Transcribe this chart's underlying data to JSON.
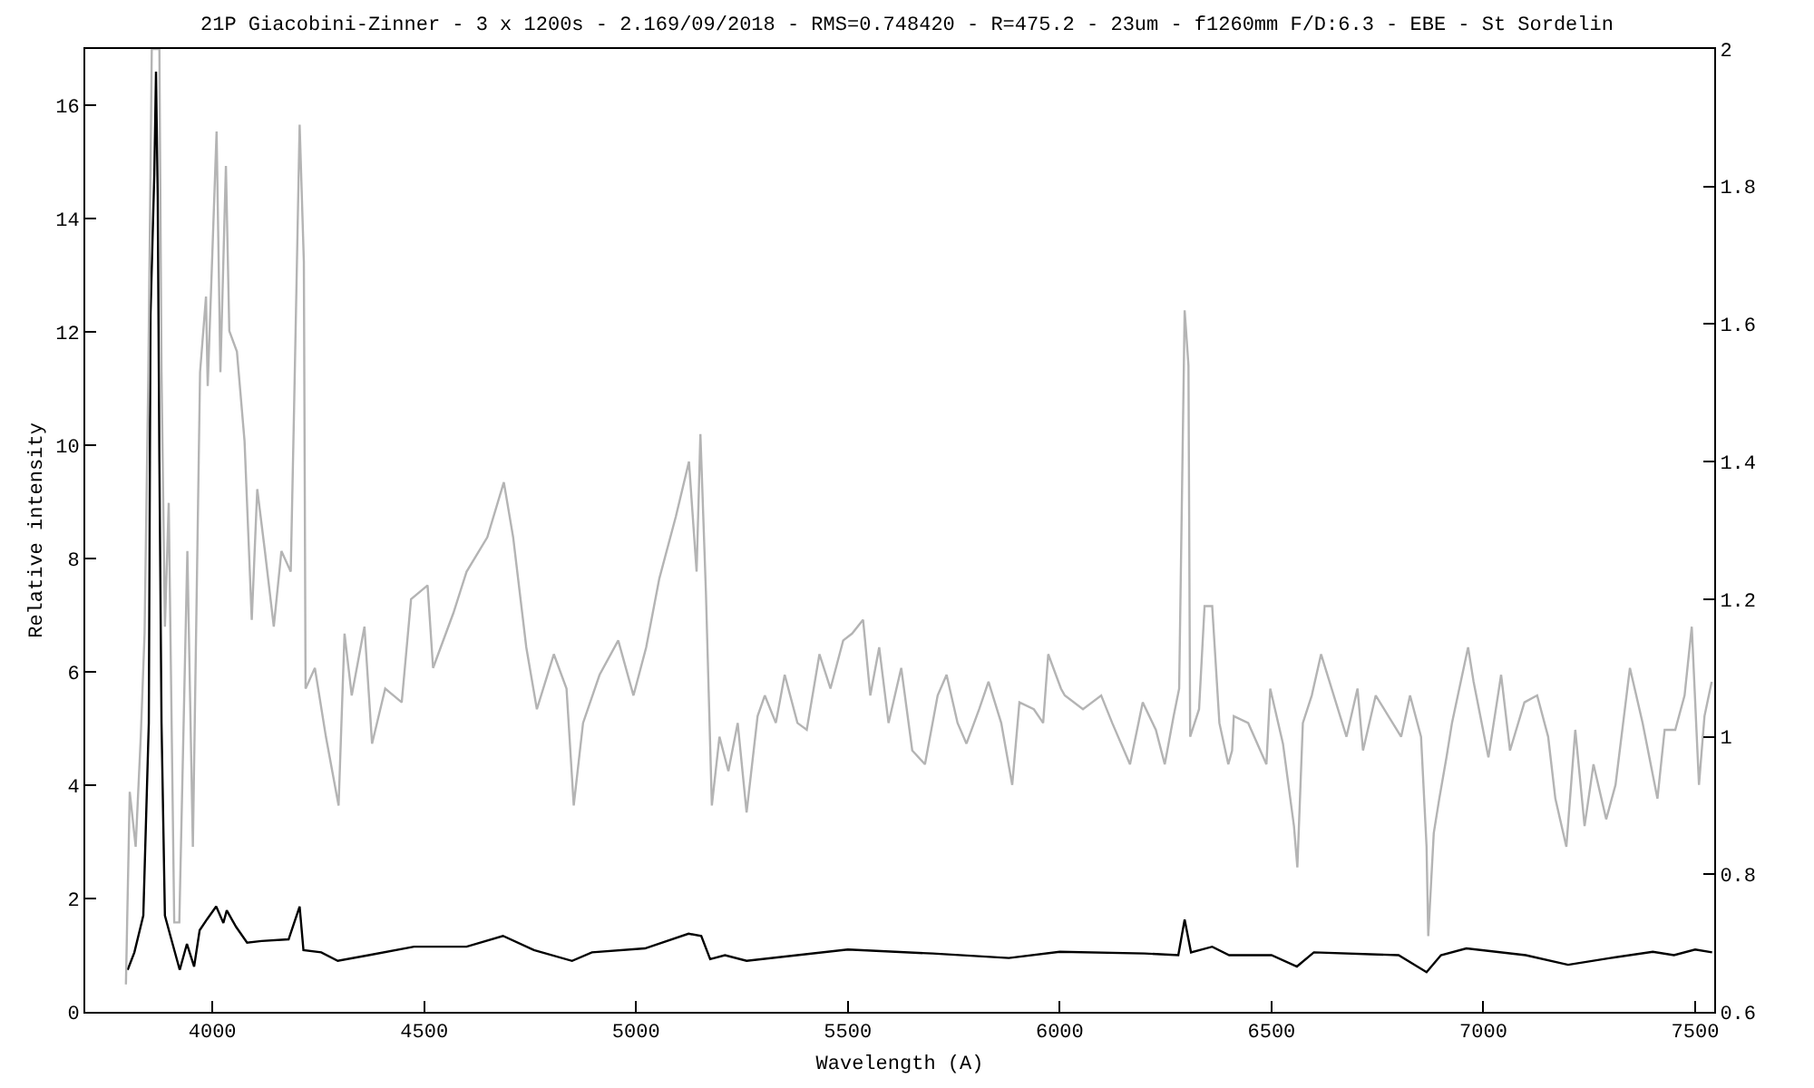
{
  "chart_data": {
    "type": "line",
    "title": "21P Giacobini-Zinner - 3 x 1200s - 2.169/09/2018 - RMS=0.748420 - R=475.2 - 23um - f1260mm F/D:6.3 - EBE - St Sordelin",
    "xlabel": "Wavelength (A)",
    "ylabel": "Relative intensity",
    "xlim": [
      3700,
      7545
    ],
    "xticks": [
      4000,
      4500,
      5000,
      5500,
      6000,
      6500,
      7000,
      7500
    ],
    "ylim": [
      0,
      17
    ],
    "yticks": [
      0,
      2,
      4,
      6,
      8,
      10,
      12,
      14,
      16
    ],
    "y2lim": [
      0.6,
      2
    ],
    "y2ticks": [
      0.6,
      0.8,
      1,
      1.2,
      1.4,
      1.6,
      1.8,
      2
    ],
    "grid": false,
    "marker": "none",
    "line_style": "solid",
    "series": [
      {
        "color": "#b4b4b4",
        "axis": "y2",
        "x": [
          3796,
          3805,
          3819,
          3831,
          3840,
          3849,
          3857,
          3875,
          3880,
          3888,
          3897,
          3910,
          3922,
          3941,
          3954,
          3971,
          3985,
          3989,
          4010,
          4019,
          4032,
          4040,
          4058,
          4076,
          4093,
          4106,
          4124,
          4145,
          4163,
          4185,
          4193,
          4206,
          4216,
          4220,
          4242,
          4268,
          4298,
          4312,
          4329,
          4359,
          4377,
          4408,
          4447,
          4469,
          4508,
          4521,
          4569,
          4600,
          4649,
          4688,
          4710,
          4741,
          4766,
          4806,
          4836,
          4853,
          4875,
          4914,
          4958,
          4994,
          5024,
          5055,
          5094,
          5125,
          5143,
          5152,
          5165,
          5179,
          5197,
          5218,
          5240,
          5261,
          5287,
          5304,
          5330,
          5351,
          5381,
          5403,
          5433,
          5459,
          5489,
          5510,
          5536,
          5553,
          5574,
          5596,
          5626,
          5652,
          5682,
          5712,
          5733,
          5759,
          5780,
          5810,
          5832,
          5862,
          5888,
          5905,
          5939,
          5961,
          5973,
          6003,
          6012,
          6055,
          6098,
          6124,
          6166,
          6196,
          6227,
          6248,
          6269,
          6282,
          6295,
          6304,
          6308,
          6329,
          6342,
          6360,
          6377,
          6398,
          6407,
          6411,
          6445,
          6488,
          6497,
          6527,
          6553,
          6561,
          6574,
          6595,
          6617,
          6647,
          6677,
          6703,
          6716,
          6746,
          6776,
          6806,
          6827,
          6853,
          6866,
          6870,
          6883,
          6896,
          6913,
          6926,
          6964,
          6977,
          7012,
          7042,
          7063,
          7097,
          7127,
          7153,
          7170,
          7196,
          7217,
          7239,
          7260,
          7290,
          7312,
          7346,
          7376,
          7411,
          7428,
          7453,
          7475,
          7492,
          7509,
          7522,
          7539
        ],
        "values": [
          0.64,
          0.92,
          0.84,
          1.0,
          1.15,
          1.53,
          2.0,
          2.0,
          1.53,
          1.16,
          1.34,
          0.73,
          0.73,
          1.27,
          0.84,
          1.53,
          1.64,
          1.51,
          1.88,
          1.53,
          1.83,
          1.59,
          1.56,
          1.43,
          1.17,
          1.36,
          1.27,
          1.16,
          1.27,
          1.24,
          1.48,
          1.89,
          1.69,
          1.07,
          1.1,
          1.0,
          0.9,
          1.15,
          1.06,
          1.16,
          0.99,
          1.07,
          1.05,
          1.2,
          1.22,
          1.1,
          1.18,
          1.24,
          1.29,
          1.37,
          1.29,
          1.13,
          1.04,
          1.12,
          1.07,
          0.9,
          1.02,
          1.09,
          1.14,
          1.06,
          1.13,
          1.23,
          1.32,
          1.4,
          1.24,
          1.44,
          1.21,
          0.9,
          1.0,
          0.95,
          1.02,
          0.89,
          1.03,
          1.06,
          1.02,
          1.09,
          1.02,
          1.01,
          1.12,
          1.07,
          1.14,
          1.15,
          1.17,
          1.06,
          1.13,
          1.02,
          1.1,
          0.98,
          0.96,
          1.06,
          1.09,
          1.02,
          0.99,
          1.04,
          1.08,
          1.02,
          0.93,
          1.05,
          1.04,
          1.02,
          1.12,
          1.07,
          1.06,
          1.04,
          1.06,
          1.02,
          0.96,
          1.05,
          1.01,
          0.96,
          1.03,
          1.07,
          1.62,
          1.54,
          1.0,
          1.04,
          1.19,
          1.19,
          1.02,
          0.96,
          0.98,
          1.03,
          1.02,
          0.96,
          1.07,
          0.99,
          0.87,
          0.81,
          1.02,
          1.06,
          1.12,
          1.06,
          1.0,
          1.07,
          0.98,
          1.06,
          1.03,
          1.0,
          1.06,
          1.0,
          0.84,
          0.71,
          0.86,
          0.91,
          0.97,
          1.02,
          1.13,
          1.08,
          0.97,
          1.09,
          0.98,
          1.05,
          1.06,
          1.0,
          0.91,
          0.84,
          1.01,
          0.87,
          0.96,
          0.88,
          0.93,
          1.1,
          1.02,
          0.91,
          1.01,
          1.01,
          1.06,
          1.16,
          0.93,
          1.03,
          1.08
        ]
      },
      {
        "color": "#000000",
        "x": [
          3800,
          3816,
          3837,
          3850,
          3854,
          3863,
          3867,
          3871,
          3875,
          3880,
          3888,
          3901,
          3923,
          3940,
          3957,
          3970,
          3987,
          4009,
          4026,
          4034,
          4056,
          4082,
          4116,
          4180,
          4206,
          4215,
          4257,
          4296,
          4369,
          4476,
          4600,
          4686,
          4759,
          4849,
          4896,
          5021,
          5124,
          5154,
          5175,
          5210,
          5261,
          5500,
          5700,
          5880,
          6000,
          6200,
          6280,
          6295,
          6310,
          6360,
          6400,
          6500,
          6560,
          6600,
          6800,
          6866,
          6900,
          6960,
          7100,
          7200,
          7300,
          7400,
          7450,
          7500,
          7540
        ],
        "values": [
          0.74,
          1.05,
          1.7,
          5.1,
          12.3,
          14.8,
          16.6,
          14.4,
          9.7,
          5.1,
          1.7,
          1.34,
          0.74,
          1.2,
          0.8,
          1.44,
          1.63,
          1.86,
          1.57,
          1.79,
          1.5,
          1.22,
          1.25,
          1.28,
          1.86,
          1.09,
          1.05,
          0.9,
          1.0,
          1.15,
          1.15,
          1.34,
          1.09,
          0.9,
          1.05,
          1.12,
          1.38,
          1.34,
          0.93,
          1.0,
          0.9,
          1.1,
          1.03,
          0.95,
          1.06,
          1.03,
          1.0,
          1.63,
          1.05,
          1.15,
          1.0,
          1.0,
          0.8,
          1.05,
          1.0,
          0.7,
          1.0,
          1.12,
          1.0,
          0.83,
          0.95,
          1.06,
          1.0,
          1.1,
          1.05
        ]
      }
    ]
  }
}
